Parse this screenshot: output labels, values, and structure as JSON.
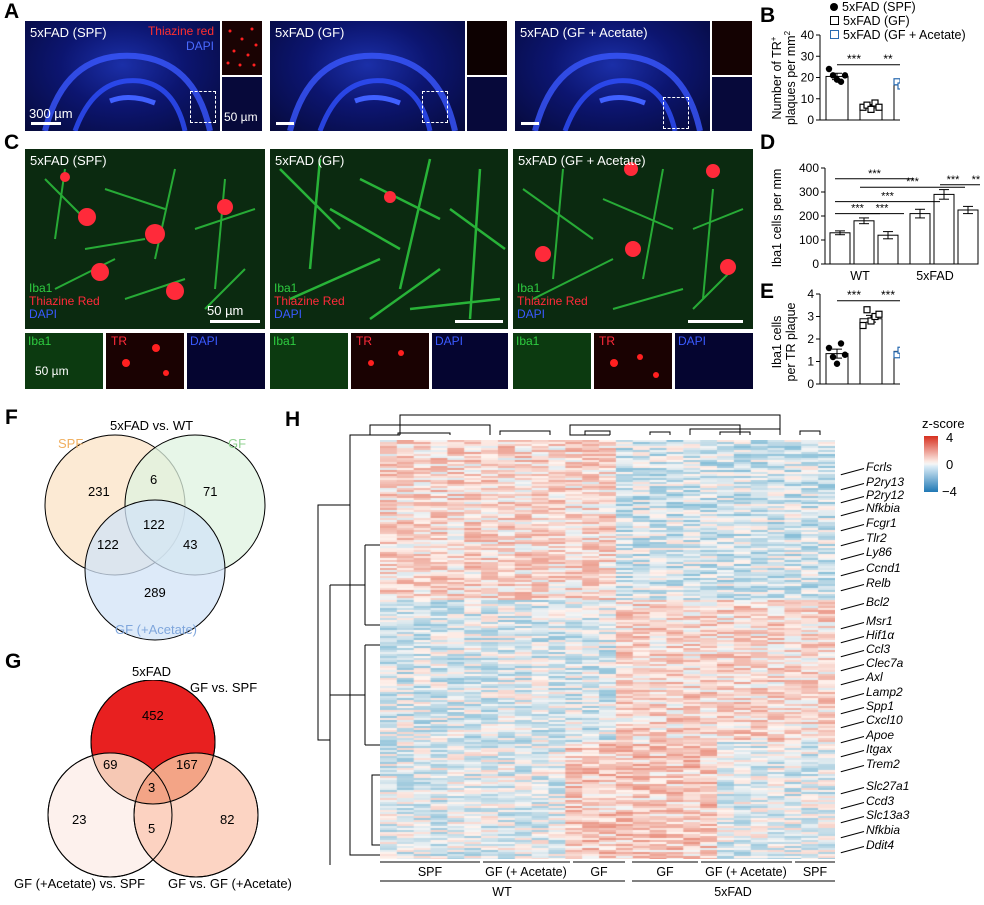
{
  "panels": {
    "A": {
      "letter": "A",
      "images": [
        {
          "title": "5xFAD (SPF)",
          "red_label": "Thiazine red",
          "blue_label": "DAPI",
          "scale_main": "300 µm",
          "scale_inset": "50 µm"
        },
        {
          "title": "5xFAD (GF)"
        },
        {
          "title": "5xFAD (GF + Acetate)"
        }
      ]
    },
    "C": {
      "letter": "C",
      "images": [
        {
          "title": "5xFAD (SPF)",
          "scale": "50 µm",
          "inset_scale": "50 µm"
        },
        {
          "title": "5xFAD (GF)"
        },
        {
          "title": "5xFAD (GF + Acetate)"
        }
      ],
      "channels": [
        "Iba1",
        "Thiazine Red",
        "DAPI"
      ],
      "inset_labels": [
        "Iba1",
        "TR",
        "DAPI"
      ]
    },
    "B": {
      "letter": "B",
      "legend": [
        "5xFAD (SPF)",
        "5xFAD (GF)",
        "5xFAD (GF + Acetate)"
      ],
      "ylabel_line1": "Number of TR",
      "ylabel_line2": "plaques per mm",
      "sig": [
        "***",
        "**"
      ]
    },
    "D": {
      "letter": "D",
      "ylabel": "Iba1 cells per mm",
      "groups": [
        "WT",
        "5xFAD"
      ],
      "sig": [
        "***",
        "***",
        "***",
        "***",
        "***",
        "***",
        "***"
      ]
    },
    "E": {
      "letter": "E",
      "ylabel_line1": "Iba1 cells",
      "ylabel_line2": "per TR plaque",
      "sig": [
        "***",
        "***"
      ]
    },
    "F": {
      "letter": "F",
      "title": "5xFAD vs. WT",
      "sets": [
        "SPF",
        "GF",
        "GF (+Acetate)"
      ],
      "counts": {
        "a": "231",
        "ab": "6",
        "b": "71",
        "abc": "122",
        "ac": "122",
        "bc": "43",
        "c": "289"
      },
      "colors": {
        "a": "#fbe3c6",
        "b": "#dff3e0",
        "c": "#d2e3f7",
        "a_text": "#f0b061",
        "b_text": "#8fd08f",
        "c_text": "#7fa6dc"
      }
    },
    "G": {
      "letter": "G",
      "top_title": "5xFAD",
      "sets": [
        "GF vs. SPF",
        "GF (+Acetate) vs. SPF",
        "GF vs. GF (+Acetate)"
      ],
      "counts": {
        "a": "452",
        "ab": "69",
        "ac": "167",
        "abc": "3",
        "b": "23",
        "bc": "5",
        "c": "82"
      }
    },
    "H": {
      "letter": "H",
      "legend_title": "z-score",
      "legend_ticks": [
        "4",
        "0",
        "−4"
      ],
      "col_groups_top": [
        "SPF",
        "GF (+ Acetate)",
        "GF",
        "GF",
        "GF (+ Acetate)",
        "SPF"
      ],
      "col_groups_bottom": [
        "WT",
        "5xFAD"
      ],
      "genes": [
        "Fcrls",
        "P2ry13",
        "P2ry12",
        "Nfkbia",
        "Fcgr1",
        "Tlr2",
        "Ly86",
        "Ccnd1",
        "Relb",
        "Bcl2",
        "Msr1",
        "Hif1α",
        "Ccl3",
        "Clec7a",
        "Axl",
        "Lamp2",
        "Spp1",
        "Cxcl10",
        "Apoe",
        "Itgax",
        "Trem2",
        "Slc27a1",
        "Ccd3",
        "Slc13a3",
        "Nfkbia",
        "Ddit4"
      ]
    }
  },
  "chart_data": [
    {
      "type": "bar",
      "panel": "B",
      "categories": [
        "5xFAD (SPF)",
        "5xFAD (GF)",
        "5xFAD (GF + Acetate)"
      ],
      "values": [
        20.5,
        6.5,
        16.5
      ],
      "errors": [
        1.5,
        0.8,
        3.0
      ],
      "points": [
        [
          24,
          21,
          19,
          18,
          21
        ],
        [
          6,
          7,
          5,
          8,
          6
        ],
        [
          18,
          16,
          8,
          21,
          16
        ]
      ],
      "ylim": [
        0,
        40
      ],
      "yticks": [
        "0",
        "10",
        "20",
        "30",
        "40"
      ]
    },
    {
      "type": "bar",
      "panel": "D",
      "categories": [
        "WT SPF",
        "WT GF",
        "WT GF+Ac",
        "5xFAD SPF",
        "5xFAD GF",
        "5xFAD GF+Ac"
      ],
      "values": [
        130,
        180,
        120,
        210,
        290,
        225
      ],
      "errors": [
        8,
        12,
        15,
        18,
        20,
        15
      ],
      "ylim": [
        0,
        400
      ],
      "yticks": [
        "0",
        "100",
        "200",
        "300",
        "400"
      ]
    },
    {
      "type": "bar",
      "panel": "E",
      "categories": [
        "5xFAD (SPF)",
        "5xFAD (GF)",
        "5xFAD (GF + Acetate)"
      ],
      "values": [
        1.35,
        2.9,
        1.45
      ],
      "errors": [
        0.2,
        0.15,
        0.1
      ],
      "points": [
        [
          1.6,
          1.2,
          0.9,
          1.8,
          1.3
        ],
        [
          2.6,
          3.3,
          2.8,
          3.0,
          3.1
        ],
        [
          1.3,
          1.5,
          1.6,
          1.4,
          1.5
        ]
      ],
      "ylim": [
        0,
        4
      ],
      "yticks": [
        "0",
        "1",
        "2",
        "3",
        "4"
      ]
    }
  ]
}
